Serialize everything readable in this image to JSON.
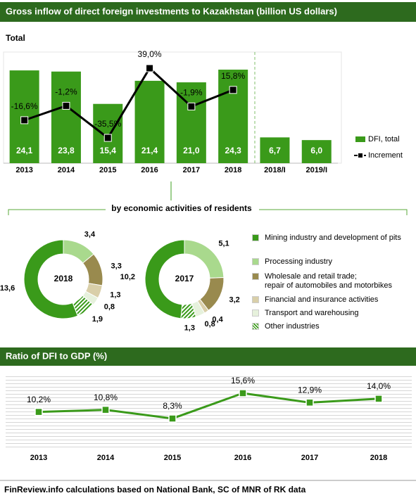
{
  "title": "Gross  inflow of direct foreign investments to Kazakhstan (billion US dollars)",
  "source": "FinReview.info  calculations based on National Bank, SC of MNR of RK data",
  "chart_data": [
    {
      "type": "bar",
      "title": "Total",
      "categories": [
        "2013",
        "2014",
        "2015",
        "2016",
        "2017",
        "2018",
        "2018/I",
        "2019/I"
      ],
      "series": [
        {
          "name": "DFI, total",
          "type": "bar",
          "color": "#3a9a1a",
          "values": [
            24.1,
            23.8,
            15.4,
            21.4,
            21.0,
            24.3,
            6.7,
            6.0
          ],
          "value_labels": [
            "24,1",
            "23,8",
            "15,4",
            "21,4",
            "21,0",
            "24,3",
            "6,7",
            "6,0"
          ]
        },
        {
          "name": "Increment",
          "type": "line",
          "axis": "y2",
          "color": "#000000",
          "values": [
            -16.6,
            -1.2,
            -35.5,
            39.0,
            -1.9,
            15.8,
            null,
            null
          ],
          "value_labels": [
            "-16,6%",
            "-1,2%",
            "-35,5%",
            "39,0%",
            "-1,9%",
            "15,8%",
            null,
            null
          ]
        }
      ]
    },
    {
      "type": "donut",
      "title": "by economic activities of residents",
      "categories": [
        "Mining industry and development of pits",
        "Processing industry",
        "Wholesale and retail trade;\nrepair of automobiles  and motorbikes",
        "Financial and insurance activities",
        "Transport and warehousing",
        "Other industries"
      ],
      "colors": [
        "#3a9a1a",
        "#a9d98d",
        "#998a4e",
        "#d9cfa9",
        "#e6f1dc",
        "#3a9a1a"
      ],
      "hatch": [
        false,
        false,
        false,
        false,
        false,
        true
      ],
      "series": [
        {
          "name": "2018",
          "values": [
            13.6,
            3.4,
            3.3,
            1.3,
            0.8,
            1.9
          ],
          "value_labels": [
            "13,6",
            "3,4",
            "3,3",
            "1,3",
            "0,8",
            "1,9"
          ]
        },
        {
          "name": "2017",
          "values": [
            10.2,
            5.1,
            3.2,
            0.4,
            0.8,
            1.3
          ],
          "value_labels": [
            "10,2",
            "5,1",
            "3,2",
            "0,4",
            "0,8",
            "1,3"
          ]
        }
      ]
    },
    {
      "type": "line",
      "title": "Ratio of DFI to GDP (%)",
      "categories": [
        "2013",
        "2014",
        "2015",
        "2016",
        "2017",
        "2018"
      ],
      "color": "#3a9a1a",
      "values": [
        10.2,
        10.8,
        8.3,
        15.6,
        12.9,
        14.0
      ],
      "value_labels": [
        "10,2%",
        "10,8%",
        "8,3%",
        "15,6%",
        "12,9%",
        "14,0%"
      ]
    }
  ]
}
